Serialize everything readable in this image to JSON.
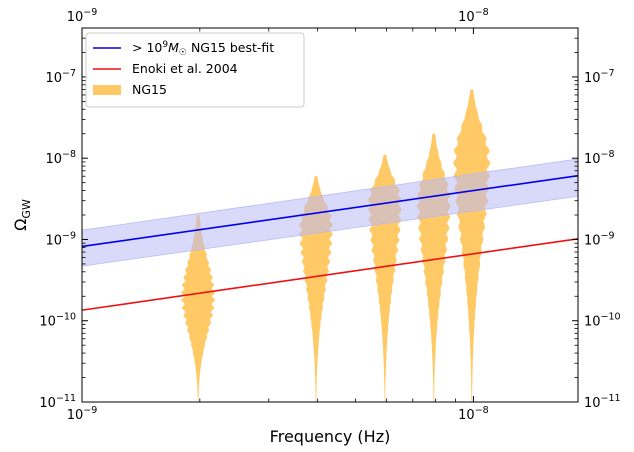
{
  "chart_data": {
    "type": "line",
    "xlabel": "Frequency (Hz)",
    "ylabel": "Ω",
    "ylabel_sub": "GW",
    "xscale": "log",
    "yscale": "log",
    "xlim": [
      1e-09,
      1.85e-08
    ],
    "ylim": [
      1e-11,
      4e-07
    ],
    "x_ticks": [
      {
        "value": 1e-09,
        "base": "10",
        "exp": "−9"
      },
      {
        "value": 1e-08,
        "base": "10",
        "exp": "−8"
      }
    ],
    "y_ticks": [
      {
        "value": 1e-11,
        "base": "10",
        "exp": "−11"
      },
      {
        "value": 1e-10,
        "base": "10",
        "exp": "−10"
      },
      {
        "value": 1e-09,
        "base": "10",
        "exp": "−9"
      },
      {
        "value": 1e-08,
        "base": "10",
        "exp": "−8"
      },
      {
        "value": 1e-07,
        "base": "10",
        "exp": "−7"
      }
    ],
    "series": [
      {
        "name": "> 10^9 M☉ NG15 best-fit",
        "color": "#0000ee",
        "x": [
          1e-09,
          1.85e-08
        ],
        "y": [
          8.2e-10,
          6.1e-09
        ],
        "band_lower": [
          4.7e-10,
          3.4e-09
        ],
        "band_upper": [
          1.3e-09,
          9.8e-09
        ],
        "band_color": "#b9b9f5"
      },
      {
        "name": "Enoki et al. 2004",
        "color": "#ee1111",
        "x": [
          1e-09,
          1.85e-08
        ],
        "y": [
          1.35e-10,
          1.02e-09
        ]
      }
    ],
    "violins": {
      "name": "NG15",
      "color": "#ffc966",
      "data": [
        {
          "freq": 1.98e-09,
          "center": 2e-10,
          "top": 2e-09,
          "bottom": 1e-11,
          "max_width_frac": 0.55
        },
        {
          "freq": 3.96e-09,
          "center": 1.5e-09,
          "top": 6e-09,
          "bottom": 1e-11,
          "max_width_frac": 0.55
        },
        {
          "freq": 5.94e-09,
          "center": 3e-09,
          "top": 1.1e-08,
          "bottom": 1e-11,
          "max_width_frac": 0.55
        },
        {
          "freq": 7.92e-09,
          "center": 3e-09,
          "top": 2e-08,
          "bottom": 1e-11,
          "max_width_frac": 0.55
        },
        {
          "freq": 9.9e-09,
          "center": 1e-08,
          "top": 7e-08,
          "bottom": 1e-11,
          "max_width_frac": 0.6
        }
      ]
    },
    "legend": {
      "position": "top-left",
      "entries": [
        {
          "label_prefix": "> 10",
          "label_sup": "9",
          "label_mid": "M",
          "label_sub": "☉",
          "label_suffix": " NG15 best-fit",
          "kind": "line",
          "color": "#0000ee"
        },
        {
          "label": "Enoki et al. 2004",
          "kind": "line",
          "color": "#ee1111"
        },
        {
          "label": "NG15",
          "kind": "patch",
          "color": "#ffc966"
        }
      ]
    }
  }
}
